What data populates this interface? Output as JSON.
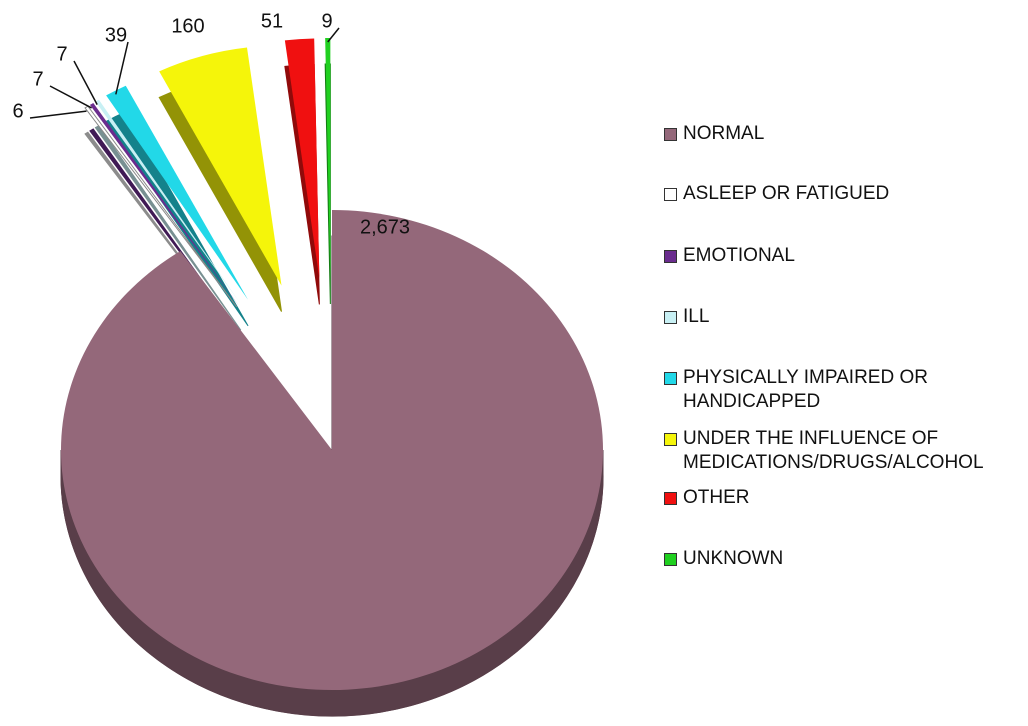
{
  "chart_data": {
    "type": "pie",
    "categories": [
      "NORMAL",
      "ASLEEP OR FATIGUED",
      "EMOTIONAL",
      "ILL",
      "PHYSICALLY IMPAIRED OR HANDICAPPED",
      "UNDER THE INFLUENCE OF MEDICATIONS/DRUGS/ALCOHOL",
      "OTHER",
      "UNKNOWN"
    ],
    "values": [
      2673,
      6,
      7,
      7,
      39,
      160,
      51,
      9
    ],
    "value_labels": [
      "2,673",
      "6",
      "7",
      "7",
      "39",
      "160",
      "51",
      "9"
    ],
    "colors": [
      "#94687a",
      "#ffffff",
      "#6a2c8e",
      "#c8f0f4",
      "#22d8e8",
      "#f5f50a",
      "#f01010",
      "#20d020"
    ],
    "legend": "right"
  }
}
